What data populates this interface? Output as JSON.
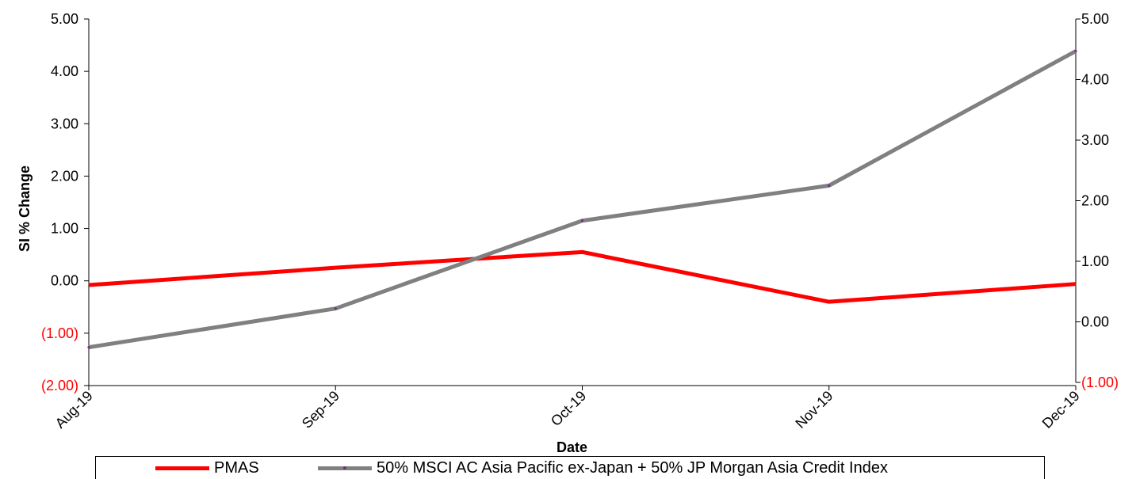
{
  "chart_data": {
    "type": "line",
    "categories": [
      "Aug-19",
      "Sep-19",
      "Oct-19",
      "Nov-19",
      "Dec-19"
    ],
    "xlabel": "Date",
    "ylabel": "SI % Change",
    "y_left": {
      "ylim": [
        -2,
        5
      ],
      "ticks": [
        5,
        4,
        3,
        2,
        1,
        0,
        -1,
        -2
      ],
      "tick_labels": [
        "5.00",
        "4.00",
        "3.00",
        "2.00",
        "1.00",
        "0.00",
        "(1.00)",
        "(2.00)"
      ]
    },
    "y_right": {
      "ylim": [
        -1,
        5
      ],
      "ticks": [
        5,
        4,
        3,
        2,
        1,
        0,
        -1
      ],
      "tick_labels": [
        "5.00",
        "4.00",
        "3.00",
        "2.00",
        "1.00",
        "0.00",
        "(1.00)"
      ]
    },
    "negative_label_color": "#ff0000",
    "series": [
      {
        "name": "PMAS",
        "axis": "left",
        "color": "#ff0000",
        "values": [
          -0.08,
          0.25,
          0.55,
          -0.4,
          -0.06
        ]
      },
      {
        "name": "50% MSCI AC Asia Pacific ex-Japan + 50% JP Morgan Asia Credit Index",
        "axis": "right",
        "color": "#808080",
        "marker_color": "#7a2a8a",
        "values": [
          -0.42,
          0.22,
          1.67,
          2.25,
          4.47
        ]
      }
    ],
    "grid": false,
    "legend_position": "bottom"
  }
}
